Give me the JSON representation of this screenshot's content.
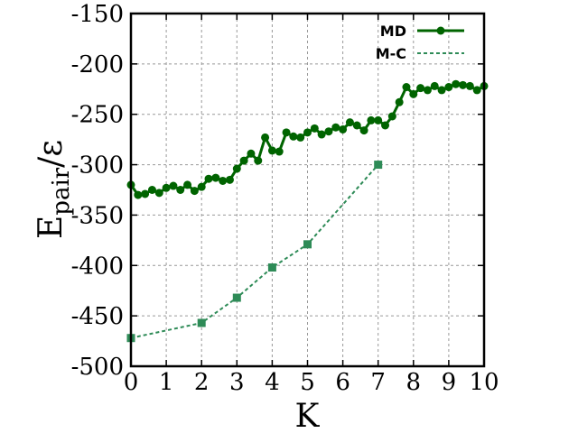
{
  "chart_data": {
    "type": "line",
    "xlabel": "K",
    "ylabel_main": "E",
    "ylabel_sub": "pair",
    "ylabel_tail": "/ε",
    "xlim": [
      0,
      10
    ],
    "ylim": [
      -500,
      -150
    ],
    "xticks": [
      "0",
      "1",
      "2",
      "3",
      "4",
      "5",
      "6",
      "7",
      "8",
      "9",
      "10"
    ],
    "yticks": [
      "-150",
      "-200",
      "-250",
      "-300",
      "-350",
      "-400",
      "-450",
      "-500"
    ],
    "grid": true,
    "legend_position": "top-right",
    "series": [
      {
        "name": "MD",
        "color": "#006400",
        "style": "solid",
        "marker": "circle",
        "x": [
          0,
          0.2,
          0.4,
          0.6,
          0.8,
          1.0,
          1.2,
          1.4,
          1.6,
          1.8,
          2.0,
          2.2,
          2.4,
          2.6,
          2.8,
          3.0,
          3.2,
          3.4,
          3.6,
          3.8,
          4.0,
          4.2,
          4.4,
          4.6,
          4.8,
          5.0,
          5.2,
          5.4,
          5.6,
          5.8,
          6.0,
          6.2,
          6.4,
          6.6,
          6.8,
          7.0,
          7.2,
          7.4,
          7.6,
          7.8,
          8.0,
          8.2,
          8.4,
          8.6,
          8.8,
          9.0,
          9.2,
          9.4,
          9.6,
          9.8,
          10.0
        ],
        "values": [
          -320,
          -330,
          -329,
          -325,
          -328,
          -323,
          -321,
          -325,
          -320,
          -326,
          -322,
          -314,
          -313,
          -316,
          -315,
          -304,
          -296,
          -289,
          -296,
          -273,
          -286,
          -287,
          -268,
          -272,
          -273,
          -268,
          -264,
          -270,
          -267,
          -263,
          -265,
          -258,
          -261,
          -266,
          -256,
          -256,
          -261,
          -252,
          -238,
          -223,
          -230,
          -224,
          -226,
          -222,
          -226,
          -223,
          -220,
          -221,
          -222,
          -226,
          -222
        ]
      },
      {
        "name": "M-C",
        "color": "#2e8b57",
        "style": "dashed",
        "marker": "square",
        "x": [
          0,
          2,
          3,
          4,
          5,
          7
        ],
        "values": [
          -472,
          -457,
          -432,
          -402,
          -379,
          -300
        ]
      }
    ]
  }
}
